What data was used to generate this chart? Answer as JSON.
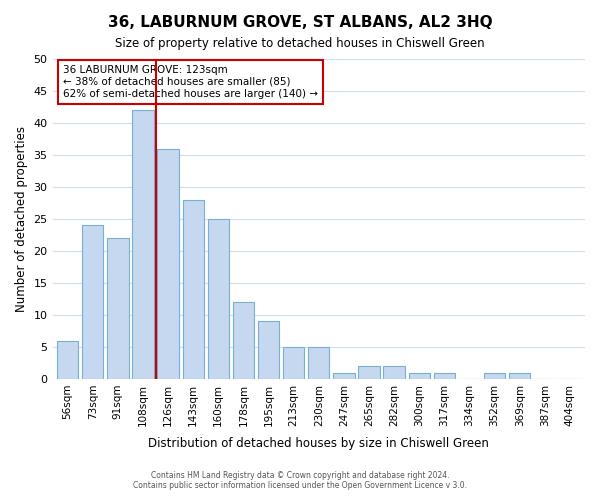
{
  "title": "36, LABURNUM GROVE, ST ALBANS, AL2 3HQ",
  "subtitle": "Size of property relative to detached houses in Chiswell Green",
  "xlabel": "Distribution of detached houses by size in Chiswell Green",
  "ylabel": "Number of detached properties",
  "bar_labels": [
    "56sqm",
    "73sqm",
    "91sqm",
    "108sqm",
    "126sqm",
    "143sqm",
    "160sqm",
    "178sqm",
    "195sqm",
    "213sqm",
    "230sqm",
    "247sqm",
    "265sqm",
    "282sqm",
    "300sqm",
    "317sqm",
    "334sqm",
    "352sqm",
    "369sqm",
    "387sqm",
    "404sqm"
  ],
  "bar_heights": [
    6,
    24,
    22,
    42,
    36,
    28,
    25,
    12,
    9,
    5,
    5,
    1,
    2,
    2,
    1,
    1,
    0,
    1,
    1,
    0,
    0
  ],
  "bar_color": "#c5d8f0",
  "bar_edge_color": "#7aafd4",
  "vline_x": 4,
  "vline_color": "#cc0000",
  "ylim": [
    0,
    50
  ],
  "yticks": [
    0,
    5,
    10,
    15,
    20,
    25,
    30,
    35,
    40,
    45,
    50
  ],
  "annotation_title": "36 LABURNUM GROVE: 123sqm",
  "annotation_line1": "← 38% of detached houses are smaller (85)",
  "annotation_line2": "62% of semi-detached houses are larger (140) →",
  "annotation_box_color": "#ffffff",
  "annotation_box_edge": "#cc0000",
  "footer1": "Contains HM Land Registry data © Crown copyright and database right 2024.",
  "footer2": "Contains public sector information licensed under the Open Government Licence v 3.0.",
  "background_color": "#ffffff",
  "grid_color": "#ccddee"
}
